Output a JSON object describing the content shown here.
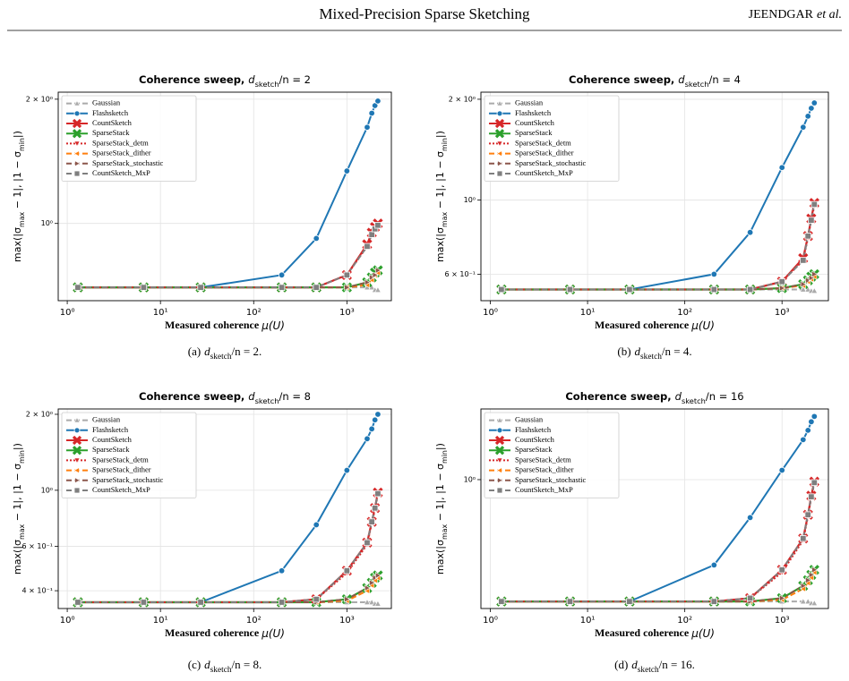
{
  "header": {
    "title": "Mixed-Precision Sparse Sketching",
    "author": "JEENDGAR",
    "author_suffix": "et al."
  },
  "captions": [
    [
      "(a)",
      "d",
      "sketch",
      "/n = 2."
    ],
    [
      "(b)",
      "d",
      "sketch",
      "/n = 4."
    ],
    [
      "(c)",
      "d",
      "sketch",
      "/n = 8."
    ],
    [
      "(d)",
      "d",
      "sketch",
      "/n = 16."
    ]
  ],
  "chart_data": [
    {
      "type": "line",
      "title": [
        "Coherence sweep, ",
        "d",
        "sketch",
        "/n = 2"
      ],
      "xlabel": [
        "Measured coherence ",
        "μ(U)"
      ],
      "ylabel": [
        "max(|σ",
        "max",
        " − 1|, |1 − σ",
        "min",
        "|)"
      ],
      "xscale": "log",
      "yscale": "log",
      "grid": true,
      "legend": "upper left",
      "xlim": [
        0.8,
        3000
      ],
      "xticks": [
        {
          "value": 1,
          "label": "10⁰"
        },
        {
          "value": 10,
          "label": "10¹"
        },
        {
          "value": 100,
          "label": "10²"
        },
        {
          "value": 1000,
          "label": "10³"
        }
      ],
      "ylim": [
        0.65,
        2.08
      ],
      "yticks": [
        {
          "value": 1,
          "label": "10⁰"
        },
        {
          "value": 2,
          "label": "2 × 10⁰"
        }
      ],
      "x": [
        1.3,
        6.6,
        27,
        200,
        470,
        1000,
        1650,
        1850,
        2000,
        2150
      ],
      "series": [
        {
          "name": "Gaussian",
          "color": "#aaaaaa",
          "marker": "triangle-up",
          "linestyle": "dashed",
          "values": [
            0.7,
            0.7,
            0.7,
            0.7,
            0.7,
            0.7,
            0.7,
            0.7,
            0.69,
            0.69
          ]
        },
        {
          "name": "Flashsketch",
          "color": "#1f77b4",
          "marker": "circle",
          "linestyle": "solid",
          "values": [
            0.7,
            0.7,
            0.7,
            0.75,
            0.92,
            1.34,
            1.71,
            1.85,
            1.93,
            1.98
          ]
        },
        {
          "name": "CountSketch",
          "color": "#d62728",
          "marker": "x",
          "linestyle": "solid",
          "values": [
            0.7,
            0.7,
            0.7,
            0.7,
            0.7,
            0.75,
            0.89,
            0.95,
            0.98,
            1.0
          ]
        },
        {
          "name": "SparseStack",
          "color": "#2ca02c",
          "marker": "x",
          "linestyle": "solid",
          "values": [
            0.7,
            0.7,
            0.7,
            0.7,
            0.7,
            0.7,
            0.72,
            0.74,
            0.76,
            0.77
          ]
        },
        {
          "name": "SparseStack_detm",
          "color": "#d62728",
          "marker": "triangle-down",
          "linestyle": "dotted",
          "values": [
            0.7,
            0.7,
            0.7,
            0.7,
            0.7,
            0.75,
            0.88,
            0.94,
            0.97,
            0.99
          ]
        },
        {
          "name": "SparseStack_dither",
          "color": "#ff7f0e",
          "marker": "triangle-left",
          "linestyle": "dashed",
          "values": [
            0.7,
            0.7,
            0.7,
            0.7,
            0.7,
            0.7,
            0.71,
            0.73,
            0.75,
            0.76
          ]
        },
        {
          "name": "SparseStack_stochastic",
          "color": "#8c564b",
          "marker": "triangle-right",
          "linestyle": "dashed",
          "values": [
            0.7,
            0.7,
            0.7,
            0.7,
            0.7,
            0.7,
            0.72,
            0.74,
            0.75,
            0.77
          ]
        },
        {
          "name": "CountSketch_MxP",
          "color": "#7f7f7f",
          "marker": "square",
          "linestyle": "dashed",
          "values": [
            0.7,
            0.7,
            0.7,
            0.7,
            0.7,
            0.75,
            0.88,
            0.94,
            0.97,
            0.99
          ]
        }
      ]
    },
    {
      "type": "line",
      "title": [
        "Coherence sweep, ",
        "d",
        "sketch",
        "/n = 4"
      ],
      "xlabel": [
        "Measured coherence ",
        "μ(U)"
      ],
      "ylabel": [
        "max(|σ",
        "max",
        " − 1|, |1 − σ",
        "min",
        "|)"
      ],
      "xscale": "log",
      "yscale": "log",
      "grid": true,
      "legend": "upper left",
      "xlim": [
        0.8,
        3000
      ],
      "xticks": [
        {
          "value": 1,
          "label": "10⁰"
        },
        {
          "value": 10,
          "label": "10¹"
        },
        {
          "value": 100,
          "label": "10²"
        },
        {
          "value": 1000,
          "label": "10³"
        }
      ],
      "ylim": [
        0.5,
        2.1
      ],
      "yticks": [
        {
          "value": 0.6,
          "label": "6 × 10⁻¹"
        },
        {
          "value": 1,
          "label": "10⁰"
        },
        {
          "value": 2,
          "label": "2 × 10⁰"
        }
      ],
      "x": [
        1.3,
        6.6,
        27,
        200,
        470,
        1000,
        1650,
        1850,
        2000,
        2150
      ],
      "series": [
        {
          "name": "Gaussian",
          "color": "#aaaaaa",
          "marker": "triangle-up",
          "linestyle": "dashed",
          "values": [
            0.54,
            0.54,
            0.54,
            0.54,
            0.54,
            0.54,
            0.54,
            0.54,
            0.535,
            0.535
          ]
        },
        {
          "name": "Flashsketch",
          "color": "#1f77b4",
          "marker": "circle",
          "linestyle": "solid",
          "values": [
            0.54,
            0.54,
            0.54,
            0.6,
            0.8,
            1.25,
            1.65,
            1.78,
            1.88,
            1.95
          ]
        },
        {
          "name": "CountSketch",
          "color": "#d62728",
          "marker": "x",
          "linestyle": "solid",
          "values": [
            0.54,
            0.54,
            0.54,
            0.54,
            0.54,
            0.57,
            0.67,
            0.78,
            0.88,
            0.98
          ]
        },
        {
          "name": "SparseStack",
          "color": "#2ca02c",
          "marker": "x",
          "linestyle": "solid",
          "values": [
            0.54,
            0.54,
            0.54,
            0.54,
            0.54,
            0.545,
            0.56,
            0.575,
            0.59,
            0.6
          ]
        },
        {
          "name": "SparseStack_detm",
          "color": "#d62728",
          "marker": "triangle-down",
          "linestyle": "dotted",
          "values": [
            0.54,
            0.54,
            0.54,
            0.54,
            0.54,
            0.57,
            0.66,
            0.77,
            0.87,
            0.96
          ]
        },
        {
          "name": "SparseStack_dither",
          "color": "#ff7f0e",
          "marker": "triangle-left",
          "linestyle": "dashed",
          "values": [
            0.54,
            0.54,
            0.54,
            0.54,
            0.54,
            0.545,
            0.555,
            0.57,
            0.58,
            0.59
          ]
        },
        {
          "name": "SparseStack_stochastic",
          "color": "#8c564b",
          "marker": "triangle-right",
          "linestyle": "dashed",
          "values": [
            0.54,
            0.54,
            0.54,
            0.54,
            0.54,
            0.545,
            0.56,
            0.575,
            0.585,
            0.6
          ]
        },
        {
          "name": "CountSketch_MxP",
          "color": "#7f7f7f",
          "marker": "square",
          "linestyle": "dashed",
          "values": [
            0.54,
            0.54,
            0.54,
            0.54,
            0.54,
            0.57,
            0.66,
            0.78,
            0.87,
            0.97
          ]
        }
      ]
    },
    {
      "type": "line",
      "title": [
        "Coherence sweep, ",
        "d",
        "sketch",
        "/n = 8"
      ],
      "xlabel": [
        "Measured coherence ",
        "μ(U)"
      ],
      "ylabel": [
        "max(|σ",
        "max",
        " − 1|, |1 − σ",
        "min",
        "|)"
      ],
      "xscale": "log",
      "yscale": "log",
      "grid": true,
      "legend": "upper left",
      "xlim": [
        0.8,
        3000
      ],
      "xticks": [
        {
          "value": 1,
          "label": "10⁰"
        },
        {
          "value": 10,
          "label": "10¹"
        },
        {
          "value": 100,
          "label": "10²"
        },
        {
          "value": 1000,
          "label": "10³"
        }
      ],
      "ylim": [
        0.34,
        2.1
      ],
      "yticks": [
        {
          "value": 0.4,
          "label": "4 × 10⁻¹"
        },
        {
          "value": 0.6,
          "label": "6 × 10⁻¹"
        },
        {
          "value": 1,
          "label": "10⁰"
        },
        {
          "value": 2,
          "label": "2 × 10⁰"
        }
      ],
      "x": [
        1.3,
        6.6,
        27,
        200,
        470,
        1000,
        1650,
        1850,
        2000,
        2150
      ],
      "series": [
        {
          "name": "Gaussian",
          "color": "#aaaaaa",
          "marker": "triangle-up",
          "linestyle": "dashed",
          "values": [
            0.36,
            0.36,
            0.36,
            0.36,
            0.36,
            0.36,
            0.36,
            0.36,
            0.355,
            0.355
          ]
        },
        {
          "name": "Flashsketch",
          "color": "#1f77b4",
          "marker": "circle",
          "linestyle": "solid",
          "values": [
            0.36,
            0.36,
            0.36,
            0.48,
            0.73,
            1.2,
            1.6,
            1.75,
            1.9,
            2.0
          ]
        },
        {
          "name": "CountSketch",
          "color": "#d62728",
          "marker": "x",
          "linestyle": "solid",
          "values": [
            0.36,
            0.36,
            0.36,
            0.36,
            0.37,
            0.48,
            0.62,
            0.75,
            0.85,
            0.98
          ]
        },
        {
          "name": "SparseStack",
          "color": "#2ca02c",
          "marker": "x",
          "linestyle": "solid",
          "values": [
            0.36,
            0.36,
            0.36,
            0.36,
            0.36,
            0.37,
            0.41,
            0.43,
            0.45,
            0.46
          ]
        },
        {
          "name": "SparseStack_detm",
          "color": "#d62728",
          "marker": "triangle-down",
          "linestyle": "dotted",
          "values": [
            0.36,
            0.36,
            0.36,
            0.36,
            0.37,
            0.47,
            0.61,
            0.74,
            0.84,
            0.96
          ]
        },
        {
          "name": "SparseStack_dither",
          "color": "#ff7f0e",
          "marker": "triangle-left",
          "linestyle": "dashed",
          "values": [
            0.36,
            0.36,
            0.36,
            0.36,
            0.36,
            0.365,
            0.4,
            0.42,
            0.44,
            0.45
          ]
        },
        {
          "name": "SparseStack_stochastic",
          "color": "#8c564b",
          "marker": "triangle-right",
          "linestyle": "dashed",
          "values": [
            0.36,
            0.36,
            0.36,
            0.36,
            0.36,
            0.37,
            0.41,
            0.43,
            0.45,
            0.46
          ]
        },
        {
          "name": "CountSketch_MxP",
          "color": "#7f7f7f",
          "marker": "square",
          "linestyle": "dashed",
          "values": [
            0.36,
            0.36,
            0.36,
            0.36,
            0.37,
            0.48,
            0.62,
            0.75,
            0.85,
            0.97
          ]
        }
      ]
    },
    {
      "type": "line",
      "title": [
        "Coherence sweep, ",
        "d",
        "sketch",
        "/n = 16"
      ],
      "xlabel": [
        "Measured coherence ",
        "μ(U)"
      ],
      "ylabel": [
        "max(|σ",
        "max",
        " − 1|, |1 − σ",
        "min",
        "|)"
      ],
      "xscale": "log",
      "yscale": "log",
      "grid": true,
      "legend": "upper left",
      "xlim": [
        0.8,
        3000
      ],
      "xticks": [
        {
          "value": 1,
          "label": "10⁰"
        },
        {
          "value": 10,
          "label": "10¹"
        },
        {
          "value": 100,
          "label": "10²"
        },
        {
          "value": 1000,
          "label": "10³"
        }
      ],
      "ylim": [
        0.27,
        2.05
      ],
      "yticks": [
        {
          "value": 1,
          "label": "10⁰"
        }
      ],
      "x": [
        1.3,
        6.6,
        27,
        200,
        470,
        1000,
        1650,
        1850,
        2000,
        2150
      ],
      "series": [
        {
          "name": "Gaussian",
          "color": "#aaaaaa",
          "marker": "triangle-up",
          "linestyle": "dashed",
          "values": [
            0.29,
            0.29,
            0.29,
            0.29,
            0.29,
            0.29,
            0.29,
            0.29,
            0.285,
            0.285
          ]
        },
        {
          "name": "Flashsketch",
          "color": "#1f77b4",
          "marker": "circle",
          "linestyle": "solid",
          "values": [
            0.29,
            0.29,
            0.29,
            0.42,
            0.68,
            1.1,
            1.5,
            1.65,
            1.8,
            1.9
          ]
        },
        {
          "name": "CountSketch",
          "color": "#d62728",
          "marker": "x",
          "linestyle": "solid",
          "values": [
            0.29,
            0.29,
            0.29,
            0.29,
            0.3,
            0.4,
            0.55,
            0.7,
            0.85,
            0.98
          ]
        },
        {
          "name": "SparseStack",
          "color": "#2ca02c",
          "marker": "x",
          "linestyle": "solid",
          "values": [
            0.29,
            0.29,
            0.29,
            0.29,
            0.29,
            0.3,
            0.34,
            0.36,
            0.38,
            0.4
          ]
        },
        {
          "name": "SparseStack_detm",
          "color": "#d62728",
          "marker": "triangle-down",
          "linestyle": "dotted",
          "values": [
            0.29,
            0.29,
            0.29,
            0.29,
            0.3,
            0.39,
            0.54,
            0.69,
            0.83,
            0.96
          ]
        },
        {
          "name": "SparseStack_dither",
          "color": "#ff7f0e",
          "marker": "triangle-left",
          "linestyle": "dashed",
          "values": [
            0.29,
            0.29,
            0.29,
            0.29,
            0.29,
            0.295,
            0.33,
            0.35,
            0.37,
            0.39
          ]
        },
        {
          "name": "SparseStack_stochastic",
          "color": "#8c564b",
          "marker": "triangle-right",
          "linestyle": "dashed",
          "values": [
            0.29,
            0.29,
            0.29,
            0.29,
            0.29,
            0.3,
            0.34,
            0.36,
            0.38,
            0.4
          ]
        },
        {
          "name": "CountSketch_MxP",
          "color": "#7f7f7f",
          "marker": "square",
          "linestyle": "dashed",
          "values": [
            0.29,
            0.29,
            0.29,
            0.29,
            0.3,
            0.4,
            0.55,
            0.7,
            0.84,
            0.97
          ]
        }
      ]
    }
  ]
}
